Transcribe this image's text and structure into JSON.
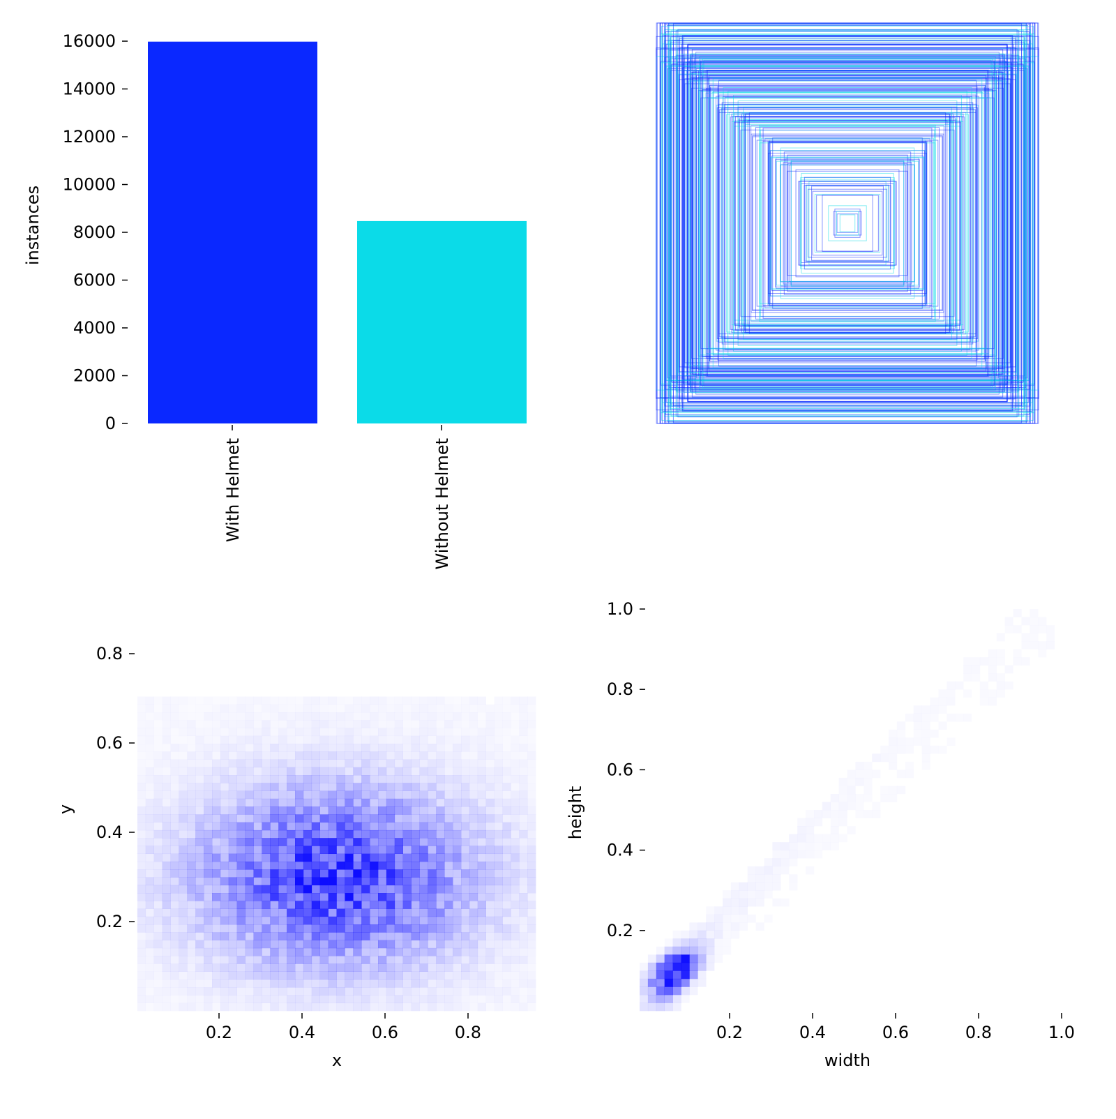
{
  "chart_data": [
    {
      "type": "bar",
      "categories": [
        "With Helmet",
        "Without Helmet"
      ],
      "values": [
        15980,
        8470
      ],
      "colors": [
        "#0a28ff",
        "#0bdbe8"
      ],
      "xlabel": "",
      "ylabel": "instances",
      "ylim": [
        0,
        16000
      ],
      "yticks": [
        "0",
        "2000",
        "4000",
        "6000",
        "8000",
        "10000",
        "12000",
        "14000",
        "16000"
      ]
    },
    {
      "type": "other",
      "title": "",
      "description_kind": "overlaid label bounding boxes centered",
      "colors": [
        "#0a28ff",
        "#0bdbe8"
      ]
    },
    {
      "type": "heatmap",
      "xlabel": "x",
      "ylabel": "y",
      "xlim": [
        0,
        1
      ],
      "ylim": [
        0,
        0.88
      ],
      "xticks": [
        "0.2",
        "0.4",
        "0.6",
        "0.8"
      ],
      "yticks": [
        "0.2",
        "0.4",
        "0.6",
        "0.8"
      ],
      "bins": 50,
      "peak": {
        "x": 0.5,
        "y": 0.3
      },
      "spread": {
        "x": 0.22,
        "y": 0.13
      },
      "color": "#0000ff"
    },
    {
      "type": "heatmap",
      "xlabel": "width",
      "ylabel": "height",
      "xlim": [
        0,
        1
      ],
      "ylim": [
        0,
        1
      ],
      "xticks": [
        "0.2",
        "0.4",
        "0.6",
        "0.8",
        "1.0"
      ],
      "yticks": [
        "0.2",
        "0.4",
        "0.6",
        "0.8",
        "1.0"
      ],
      "bins": 50,
      "peak": {
        "x": 0.08,
        "y": 0.1
      },
      "color": "#0000ff"
    }
  ]
}
